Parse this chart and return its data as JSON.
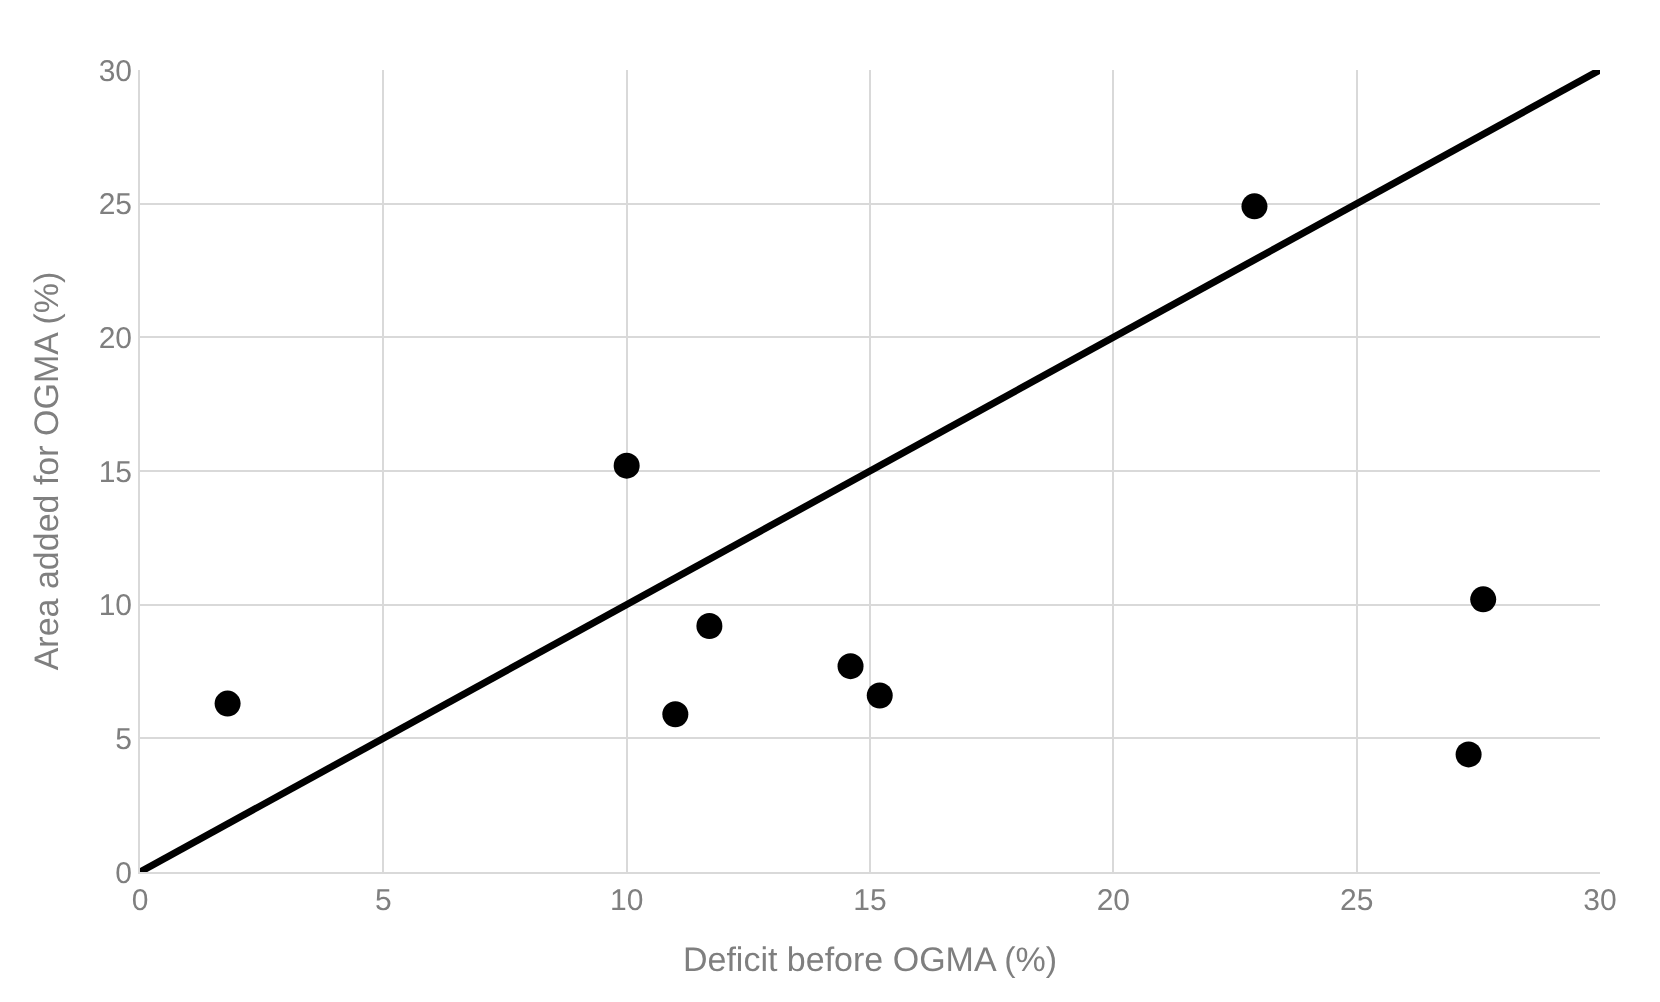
{
  "chart_data": {
    "type": "scatter",
    "xlabel": "Deficit before OGMA (%)",
    "ylabel": "Area added for OGMA (%)",
    "xlim": [
      0,
      30
    ],
    "xticks": [
      0,
      5,
      10,
      15,
      20,
      25,
      30
    ],
    "ylim": [
      0,
      30
    ],
    "yticks": [
      0,
      5,
      10,
      15,
      20,
      25,
      30
    ],
    "grid": true,
    "series": [
      {
        "color": "#000000",
        "marker": "circle",
        "x": [
          1.8,
          10.0,
          11.0,
          11.7,
          14.6,
          15.2,
          22.9,
          27.3,
          27.6
        ],
        "values": [
          6.3,
          15.2,
          5.9,
          9.2,
          7.7,
          6.6,
          24.9,
          4.4,
          10.2
        ]
      },
      {
        "type": "line",
        "marker": "none",
        "color": "#000000",
        "x": [
          0,
          30
        ],
        "values": [
          0,
          30
        ]
      }
    ]
  }
}
